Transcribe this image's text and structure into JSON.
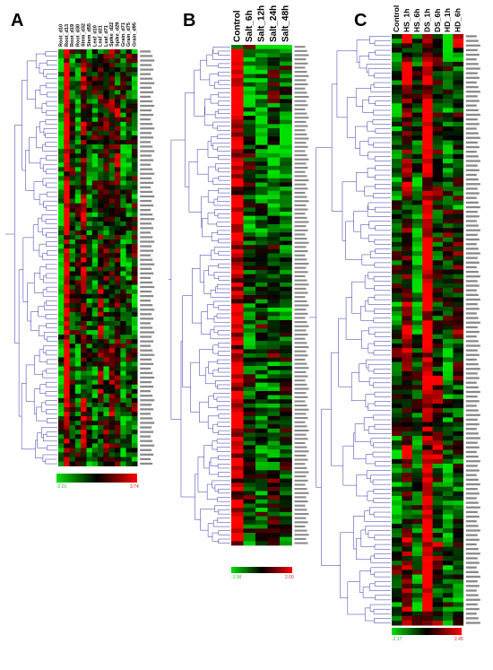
{
  "panels": [
    {
      "letter": "A",
      "columns": [
        "Root_d10",
        "Root_d13",
        "Root_d19",
        "Root_d30",
        "Stem_d32",
        "Stem_d55",
        "Leaf_d10",
        "Leaf_d21",
        "Leaf_d71",
        "Spike_d22",
        "Spike_d29",
        "Grain_d71",
        "Grain_d75",
        "Grain_d95"
      ],
      "rows": 92,
      "scale_min": "-2.01",
      "scale_max": "3.74"
    },
    {
      "letter": "B",
      "columns": [
        "Control",
        "Salt_6h",
        "Salt_12h",
        "Salt_24h",
        "Salt_48h"
      ],
      "rows": 120,
      "scale_min": "-1.99",
      "scale_max": "2.00"
    },
    {
      "letter": "C",
      "columns": [
        "Control",
        "HS_1h",
        "HS_6h",
        "DS_1h",
        "DS_6h",
        "HD_1h",
        "HD_6h"
      ],
      "rows": 128,
      "scale_min": "-2.17",
      "scale_max": "2.45"
    }
  ],
  "chart_data": [
    {
      "type": "heatmap",
      "title": "A",
      "x_categories": [
        "Root_d10",
        "Root_d13",
        "Root_d19",
        "Root_d30",
        "Stem_d32",
        "Stem_d55",
        "Leaf_d10",
        "Leaf_d21",
        "Leaf_d71",
        "Spike_d22",
        "Spike_d29",
        "Grain_d71",
        "Grain_d75",
        "Grain_d95"
      ],
      "row_count": 92,
      "color_scale": {
        "min": -2.01,
        "max": 3.74,
        "low_color": "#00e000",
        "mid_color": "#000000",
        "high_color": "#ff0000"
      },
      "dendrogram": "rows",
      "values_note": ""
    },
    {
      "type": "heatmap",
      "title": "B",
      "x_categories": [
        "Control",
        "Salt_6h",
        "Salt_12h",
        "Salt_24h",
        "Salt_48h"
      ],
      "row_count": 120,
      "color_scale": {
        "min": -1.99,
        "max": 2.0,
        "low_color": "#00e000",
        "mid_color": "#000000",
        "high_color": "#ff0000"
      },
      "dendrogram": "rows"
    },
    {
      "type": "heatmap",
      "title": "C",
      "x_categories": [
        "Control",
        "HS_1h",
        "HS_6h",
        "DS_1h",
        "DS_6h",
        "HD_1h",
        "HD_6h"
      ],
      "row_count": 128,
      "color_scale": {
        "min": -2.17,
        "max": 2.45,
        "low_color": "#00e000",
        "mid_color": "#000000",
        "high_color": "#ff0000"
      },
      "dendrogram": "rows"
    }
  ],
  "colors": {
    "high": "#ff0000",
    "mid": "#000000",
    "low": "#00e000",
    "dendrogram": "#3333aa"
  }
}
